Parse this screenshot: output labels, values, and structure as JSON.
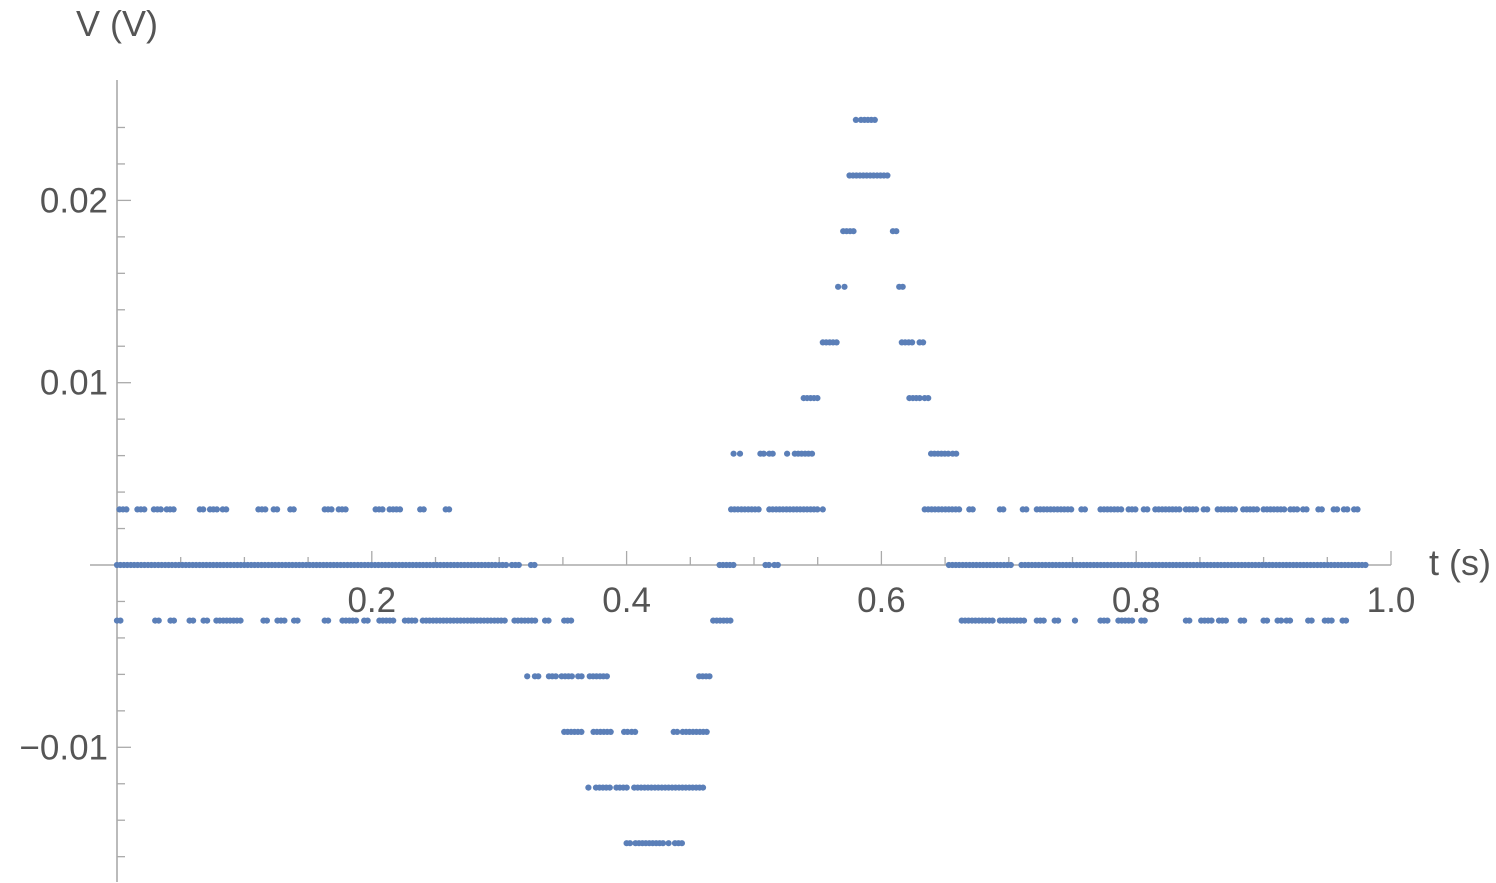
{
  "chart_data": {
    "type": "scatter",
    "xlabel": "t (s)",
    "ylabel": "V (V)",
    "xlim": [
      0.0,
      1.0
    ],
    "ylim": [
      -0.017,
      0.026
    ],
    "x_ticks": [
      0.2,
      0.4,
      0.6,
      0.8,
      1.0
    ],
    "x_tick_labels": [
      "0.2",
      "0.4",
      "0.6",
      "0.8",
      "1.0"
    ],
    "y_ticks": [
      -0.01,
      0.01,
      0.02
    ],
    "y_tick_labels": [
      "−0.01",
      "0.01",
      "0.02"
    ],
    "grid": false,
    "legend": "none",
    "marker_color": "#5b7fb8",
    "quantization_step": 0.003052,
    "series": [
      {
        "values": [
          {
            "level": 0,
            "runs": [
              [
                0.0,
                0.297
              ],
              [
                0.3,
                0.308
              ],
              [
                0.31,
                0.316
              ],
              [
                0.325,
                0.328
              ],
              [
                0.473,
                0.485
              ],
              [
                0.509,
                0.512
              ],
              [
                0.516,
                0.519
              ],
              [
                0.653,
                0.704
              ],
              [
                0.71,
                0.98
              ]
            ]
          },
          {
            "level": 1,
            "runs": [
              [
                0.002,
                0.008
              ],
              [
                0.016,
                0.024
              ],
              [
                0.029,
                0.035
              ],
              [
                0.039,
                0.046
              ],
              [
                0.065,
                0.069
              ],
              [
                0.073,
                0.08
              ],
              [
                0.083,
                0.086
              ],
              [
                0.111,
                0.118
              ],
              [
                0.123,
                0.126
              ],
              [
                0.136,
                0.139
              ],
              [
                0.163,
                0.169
              ],
              [
                0.174,
                0.181
              ],
              [
                0.203,
                0.209
              ],
              [
                0.214,
                0.224
              ],
              [
                0.238,
                0.241
              ],
              [
                0.258,
                0.261
              ],
              [
                0.482,
                0.506
              ],
              [
                0.512,
                0.55
              ],
              [
                0.554,
                0.556
              ],
              [
                0.634,
                0.663
              ],
              [
                0.669,
                0.672
              ],
              [
                0.693,
                0.696
              ],
              [
                0.711,
                0.716
              ],
              [
                0.722,
                0.751
              ],
              [
                0.757,
                0.762
              ],
              [
                0.772,
                0.79
              ],
              [
                0.794,
                0.8
              ],
              [
                0.806,
                0.809
              ],
              [
                0.815,
                0.835
              ],
              [
                0.839,
                0.848
              ],
              [
                0.853,
                0.858
              ],
              [
                0.864,
                0.88
              ],
              [
                0.884,
                0.895
              ],
              [
                0.9,
                0.917
              ],
              [
                0.921,
                0.927
              ],
              [
                0.931,
                0.934
              ],
              [
                0.943,
                0.946
              ],
              [
                0.955,
                0.96
              ],
              [
                0.963,
                0.967
              ],
              [
                0.971,
                0.974
              ]
            ]
          },
          {
            "level": -1,
            "runs": [
              [
                0.0,
                0.005
              ],
              [
                0.03,
                0.033
              ],
              [
                0.042,
                0.046
              ],
              [
                0.057,
                0.061
              ],
              [
                0.068,
                0.072
              ],
              [
                0.078,
                0.098
              ],
              [
                0.115,
                0.12
              ],
              [
                0.126,
                0.133
              ],
              [
                0.139,
                0.142
              ],
              [
                0.163,
                0.166
              ],
              [
                0.177,
                0.183
              ],
              [
                0.185,
                0.188
              ],
              [
                0.194,
                0.197
              ],
              [
                0.206,
                0.217
              ],
              [
                0.226,
                0.236
              ],
              [
                0.24,
                0.279
              ],
              [
                0.28,
                0.305
              ],
              [
                0.312,
                0.33
              ],
              [
                0.336,
                0.34
              ],
              [
                0.351,
                0.357
              ],
              [
                0.468,
                0.484
              ],
              [
                0.663,
                0.688
              ],
              [
                0.693,
                0.714
              ],
              [
                0.722,
                0.73
              ],
              [
                0.736,
                0.74
              ],
              [
                0.752,
                0.754
              ],
              [
                0.772,
                0.78
              ],
              [
                0.786,
                0.799
              ],
              [
                0.804,
                0.808
              ],
              [
                0.839,
                0.843
              ],
              [
                0.851,
                0.86
              ],
              [
                0.865,
                0.872
              ],
              [
                0.882,
                0.885
              ],
              [
                0.9,
                0.905
              ],
              [
                0.911,
                0.915
              ],
              [
                0.918,
                0.922
              ],
              [
                0.935,
                0.939
              ],
              [
                0.948,
                0.955
              ],
              [
                0.962,
                0.967
              ]
            ]
          },
          {
            "level": 2,
            "runs": [
              [
                0.484,
                0.486
              ],
              [
                0.489,
                0.491
              ],
              [
                0.505,
                0.508
              ],
              [
                0.512,
                0.515
              ],
              [
                0.526,
                0.528
              ],
              [
                0.532,
                0.546
              ],
              [
                0.639,
                0.653
              ],
              [
                0.656,
                0.659
              ]
            ]
          },
          {
            "level": -2,
            "runs": [
              [
                0.322,
                0.324
              ],
              [
                0.328,
                0.333
              ],
              [
                0.339,
                0.345
              ],
              [
                0.349,
                0.358
              ],
              [
                0.362,
                0.366
              ],
              [
                0.371,
                0.385
              ],
              [
                0.457,
                0.466
              ]
            ]
          },
          {
            "level": 3,
            "runs": [
              [
                0.539,
                0.551
              ],
              [
                0.622,
                0.631
              ],
              [
                0.634,
                0.637
              ]
            ]
          },
          {
            "level": -3,
            "runs": [
              [
                0.351,
                0.367
              ],
              [
                0.374,
                0.39
              ],
              [
                0.398,
                0.401
              ],
              [
                0.404,
                0.408
              ],
              [
                0.437,
                0.44
              ],
              [
                0.444,
                0.465
              ]
            ]
          },
          {
            "level": 4,
            "runs": [
              [
                0.554,
                0.567
              ],
              [
                0.616,
                0.626
              ],
              [
                0.63,
                0.634
              ]
            ]
          },
          {
            "level": -4,
            "runs": [
              [
                0.37,
                0.372
              ],
              [
                0.376,
                0.387
              ],
              [
                0.392,
                0.402
              ],
              [
                0.406,
                0.46
              ]
            ]
          },
          {
            "level": 5,
            "runs": [
              [
                0.566,
                0.568
              ],
              [
                0.571,
                0.573
              ],
              [
                0.614,
                0.619
              ]
            ]
          },
          {
            "level": -5,
            "runs": [
              [
                0.4,
                0.403
              ],
              [
                0.407,
                0.431
              ],
              [
                0.433,
                0.435
              ],
              [
                0.438,
                0.446
              ]
            ]
          },
          {
            "level": 6,
            "runs": [
              [
                0.57,
                0.579
              ],
              [
                0.609,
                0.613
              ]
            ]
          },
          {
            "level": 7,
            "runs": [
              [
                0.575,
                0.606
              ]
            ]
          },
          {
            "level": 8,
            "runs": [
              [
                0.58,
                0.582
              ],
              [
                0.584,
                0.597
              ]
            ]
          }
        ]
      }
    ]
  }
}
